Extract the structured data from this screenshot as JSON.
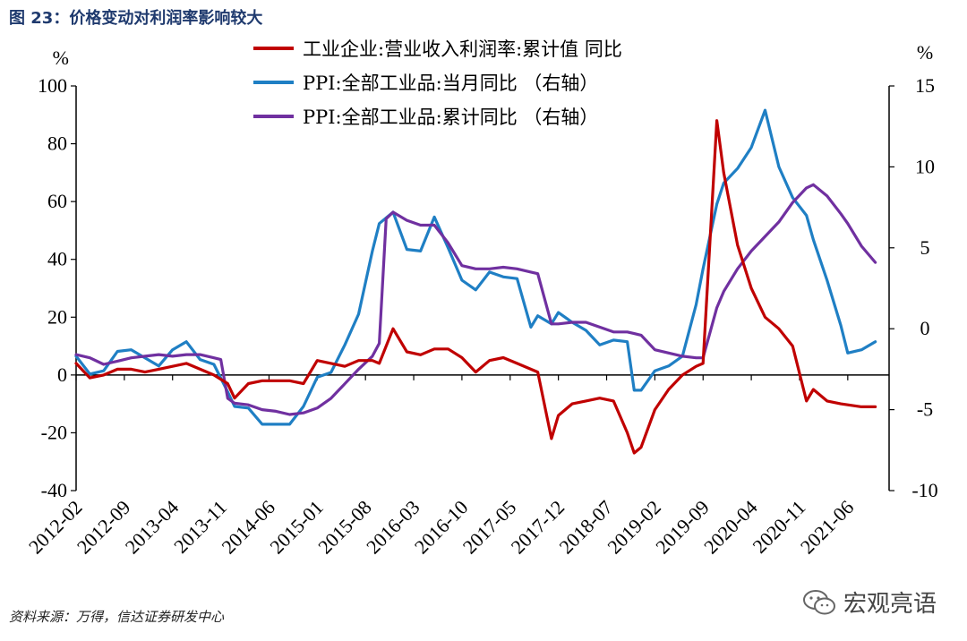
{
  "figure": {
    "title": "图 23：价格变动对利润率影响较大",
    "source": "资料来源：万得，信达证券研发中心",
    "watermark": "宏观亮语"
  },
  "chart_data": {
    "type": "line",
    "left_axis": {
      "unit": "%",
      "range": [
        -40,
        100
      ],
      "ticks": [
        -40,
        -20,
        0,
        20,
        40,
        60,
        80,
        100
      ]
    },
    "right_axis": {
      "unit": "%",
      "range": [
        -10,
        15
      ],
      "ticks": [
        -10,
        -5,
        0,
        5,
        10,
        15
      ]
    },
    "x_tick_labels": [
      "2012-02",
      "2012-09",
      "2013-04",
      "2013-11",
      "2014-06",
      "2015-01",
      "2015-08",
      "2016-03",
      "2016-10",
      "2017-05",
      "2017-12",
      "2018-07",
      "2019-02",
      "2019-09",
      "2020-04",
      "2020-11",
      "2021-06"
    ],
    "x_range": [
      0,
      118
    ],
    "series": [
      {
        "name": "工业企业:营业收入利润率:累计值 同比",
        "axis": "left",
        "color": "#c00000",
        "points": [
          [
            0,
            4
          ],
          [
            2,
            -1
          ],
          [
            4,
            0
          ],
          [
            6,
            2
          ],
          [
            8,
            2
          ],
          [
            10,
            1
          ],
          [
            12,
            2
          ],
          [
            14,
            3
          ],
          [
            16,
            4
          ],
          [
            18,
            2
          ],
          [
            20,
            0
          ],
          [
            22,
            -3
          ],
          [
            23,
            -8
          ],
          [
            25,
            -3
          ],
          [
            27,
            -2
          ],
          [
            29,
            -2
          ],
          [
            31,
            -2
          ],
          [
            33,
            -3
          ],
          [
            35,
            5
          ],
          [
            37,
            4
          ],
          [
            39,
            3
          ],
          [
            41,
            5
          ],
          [
            43,
            5
          ],
          [
            44,
            4
          ],
          [
            46,
            16
          ],
          [
            48,
            8
          ],
          [
            50,
            7
          ],
          [
            52,
            9
          ],
          [
            54,
            9
          ],
          [
            56,
            6
          ],
          [
            58,
            1
          ],
          [
            60,
            5
          ],
          [
            62,
            6
          ],
          [
            64,
            4
          ],
          [
            66,
            2
          ],
          [
            67,
            1
          ],
          [
            69,
            -22
          ],
          [
            70,
            -14
          ],
          [
            72,
            -10
          ],
          [
            74,
            -9
          ],
          [
            76,
            -8
          ],
          [
            78,
            -9
          ],
          [
            80,
            -20
          ],
          [
            81,
            -27
          ],
          [
            82,
            -25
          ],
          [
            84,
            -12
          ],
          [
            86,
            -5
          ],
          [
            88,
            0
          ],
          [
            90,
            3
          ],
          [
            91,
            4
          ],
          [
            93,
            88
          ],
          [
            94,
            70
          ],
          [
            96,
            45
          ],
          [
            98,
            30
          ],
          [
            100,
            20
          ],
          [
            102,
            16
          ],
          [
            104,
            10
          ],
          [
            106,
            -9
          ],
          [
            107,
            -5
          ],
          [
            109,
            -9
          ],
          [
            111,
            -10
          ],
          [
            114,
            -11
          ],
          [
            116,
            -11
          ]
        ]
      },
      {
        "name": "PPI:全部工业品:当月同比 （右轴）",
        "axis": "right",
        "color": "#1f7fc4",
        "points": [
          [
            0,
            -1.7
          ],
          [
            2,
            -2.8
          ],
          [
            4,
            -2.6
          ],
          [
            6,
            -1.4
          ],
          [
            8,
            -1.3
          ],
          [
            10,
            -1.8
          ],
          [
            12,
            -2.3
          ],
          [
            14,
            -1.3
          ],
          [
            16,
            -0.8
          ],
          [
            18,
            -1.9
          ],
          [
            20,
            -2.2
          ],
          [
            22,
            -3.9
          ],
          [
            23,
            -4.8
          ],
          [
            25,
            -4.9
          ],
          [
            27,
            -5.9
          ],
          [
            29,
            -5.9
          ],
          [
            31,
            -5.9
          ],
          [
            33,
            -4.8
          ],
          [
            35,
            -3
          ],
          [
            37,
            -2.7
          ],
          [
            39,
            -1
          ],
          [
            41,
            0.9
          ],
          [
            43,
            4.8
          ],
          [
            44,
            6.5
          ],
          [
            46,
            7.2
          ],
          [
            48,
            4.9
          ],
          [
            50,
            4.8
          ],
          [
            52,
            6.9
          ],
          [
            54,
            5
          ],
          [
            56,
            3
          ],
          [
            58,
            2.4
          ],
          [
            60,
            3.5
          ],
          [
            62,
            3.2
          ],
          [
            64,
            3.1
          ],
          [
            66,
            0.1
          ],
          [
            67,
            0.8
          ],
          [
            69,
            0.3
          ],
          [
            70,
            1
          ],
          [
            72,
            0.4
          ],
          [
            74,
            -0.1
          ],
          [
            76,
            -1
          ],
          [
            78,
            -0.7
          ],
          [
            80,
            -0.8
          ],
          [
            81,
            -3.8
          ],
          [
            82,
            -3.8
          ],
          [
            84,
            -2.6
          ],
          [
            86,
            -2.3
          ],
          [
            88,
            -1.7
          ],
          [
            90,
            1.5
          ],
          [
            91,
            3.7
          ],
          [
            93,
            7.7
          ],
          [
            94,
            9
          ],
          [
            96,
            9.9
          ],
          [
            98,
            11.2
          ],
          [
            100,
            13.5
          ],
          [
            102,
            10
          ],
          [
            104,
            8.1
          ],
          [
            106,
            7
          ],
          [
            107,
            5.5
          ],
          [
            109,
            3
          ],
          [
            111,
            0.2
          ],
          [
            112,
            -1.5
          ],
          [
            114,
            -1.3
          ],
          [
            116,
            -0.8
          ]
        ]
      },
      {
        "name": "PPI:全部工业品:累计同比 （右轴）",
        "axis": "right",
        "color": "#7030a0",
        "points": [
          [
            0,
            -1.6
          ],
          [
            2,
            -1.8
          ],
          [
            4,
            -2.2
          ],
          [
            6,
            -2.0
          ],
          [
            8,
            -1.8
          ],
          [
            10,
            -1.7
          ],
          [
            12,
            -1.6
          ],
          [
            14,
            -1.7
          ],
          [
            16,
            -1.6
          ],
          [
            18,
            -1.6
          ],
          [
            20,
            -1.8
          ],
          [
            21,
            -1.9
          ],
          [
            22,
            -4.3
          ],
          [
            23,
            -4.6
          ],
          [
            25,
            -4.7
          ],
          [
            27,
            -5
          ],
          [
            29,
            -5.1
          ],
          [
            31,
            -5.3
          ],
          [
            33,
            -5.2
          ],
          [
            35,
            -4.9
          ],
          [
            37,
            -4.3
          ],
          [
            39,
            -3.4
          ],
          [
            41,
            -2.5
          ],
          [
            43,
            -1.7
          ],
          [
            44,
            -0.9
          ],
          [
            45,
            6.8
          ],
          [
            46,
            7.2
          ],
          [
            48,
            6.7
          ],
          [
            50,
            6.4
          ],
          [
            52,
            6.4
          ],
          [
            54,
            5.3
          ],
          [
            56,
            3.9
          ],
          [
            58,
            3.7
          ],
          [
            60,
            3.7
          ],
          [
            62,
            3.8
          ],
          [
            64,
            3.7
          ],
          [
            66,
            3.5
          ],
          [
            67,
            3.4
          ],
          [
            69,
            0.3
          ],
          [
            70,
            0.3
          ],
          [
            72,
            0.4
          ],
          [
            74,
            0.4
          ],
          [
            76,
            0.1
          ],
          [
            78,
            -0.2
          ],
          [
            80,
            -0.2
          ],
          [
            81,
            -0.3
          ],
          [
            82,
            -0.4
          ],
          [
            84,
            -1.3
          ],
          [
            86,
            -1.5
          ],
          [
            88,
            -1.7
          ],
          [
            90,
            -1.8
          ],
          [
            91,
            -1.8
          ],
          [
            93,
            1.3
          ],
          [
            94,
            2.3
          ],
          [
            96,
            3.7
          ],
          [
            98,
            4.8
          ],
          [
            100,
            5.7
          ],
          [
            102,
            6.6
          ],
          [
            104,
            7.8
          ],
          [
            106,
            8.7
          ],
          [
            107,
            8.9
          ],
          [
            109,
            8.2
          ],
          [
            111,
            7.1
          ],
          [
            112,
            6.5
          ],
          [
            114,
            5.1
          ],
          [
            116,
            4.1
          ]
        ]
      }
    ]
  }
}
